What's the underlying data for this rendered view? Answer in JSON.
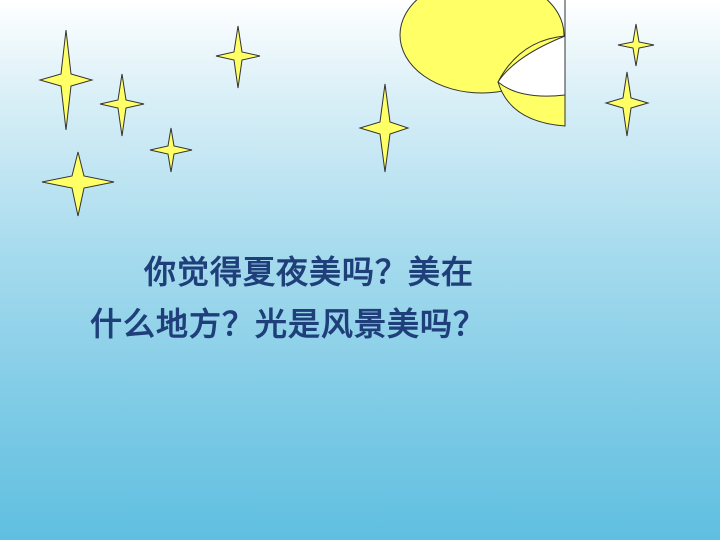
{
  "slide": {
    "line1": "你觉得夏夜美吗？美在",
    "line2": "什么地方？光是风景美吗？"
  },
  "colors": {
    "star_fill": "#ffff66",
    "moon_fill": "#ffff66",
    "outline": "#333333",
    "text": "#1f3f7a"
  }
}
